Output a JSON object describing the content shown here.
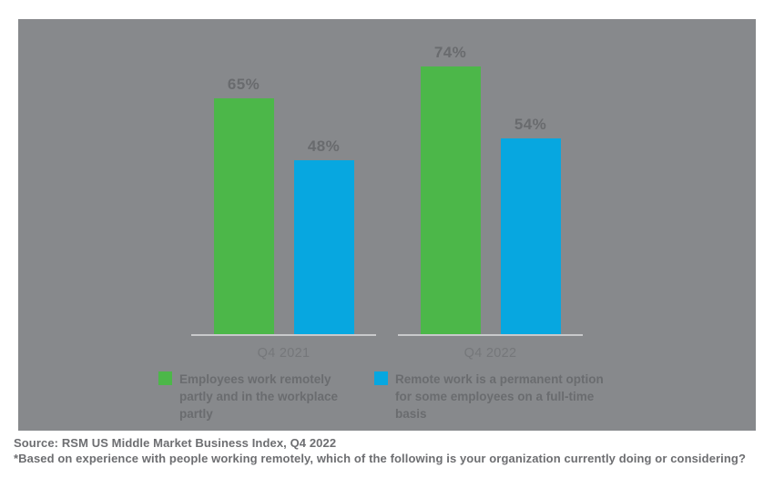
{
  "chart_data": {
    "type": "bar",
    "categories": [
      "Q4 2021",
      "Q4 2022"
    ],
    "series": [
      {
        "name": "Employees work remotely partly and in the workplace partly",
        "color": "#4cb749",
        "values": [
          65,
          74
        ]
      },
      {
        "name": "Remote work is a permanent option for some employees on a full-time basis",
        "color": "#07a7e0",
        "values": [
          48,
          54
        ]
      }
    ],
    "value_suffix": "%",
    "value_labels_shown": true,
    "ylim": [
      0,
      87
    ],
    "grid": false,
    "y_axis_shown": false,
    "legend_position": "bottom",
    "title": "",
    "xlabel": "",
    "ylabel": ""
  },
  "colors": {
    "panel_background": "#87898c",
    "baseline": "#c8c9cb",
    "value_label_text": "#696b6e",
    "axis_label_text": "#75777a",
    "legend_text": "#6a6c6f",
    "footer_text": "#6d6e71",
    "page_background": "#ffffff"
  },
  "footer": {
    "source_line": "Source: RSM US Middle Market Business Index, Q4 2022",
    "footnote_line": "*Based on experience with people working remotely, which of the following is your organization currently doing or considering?"
  }
}
